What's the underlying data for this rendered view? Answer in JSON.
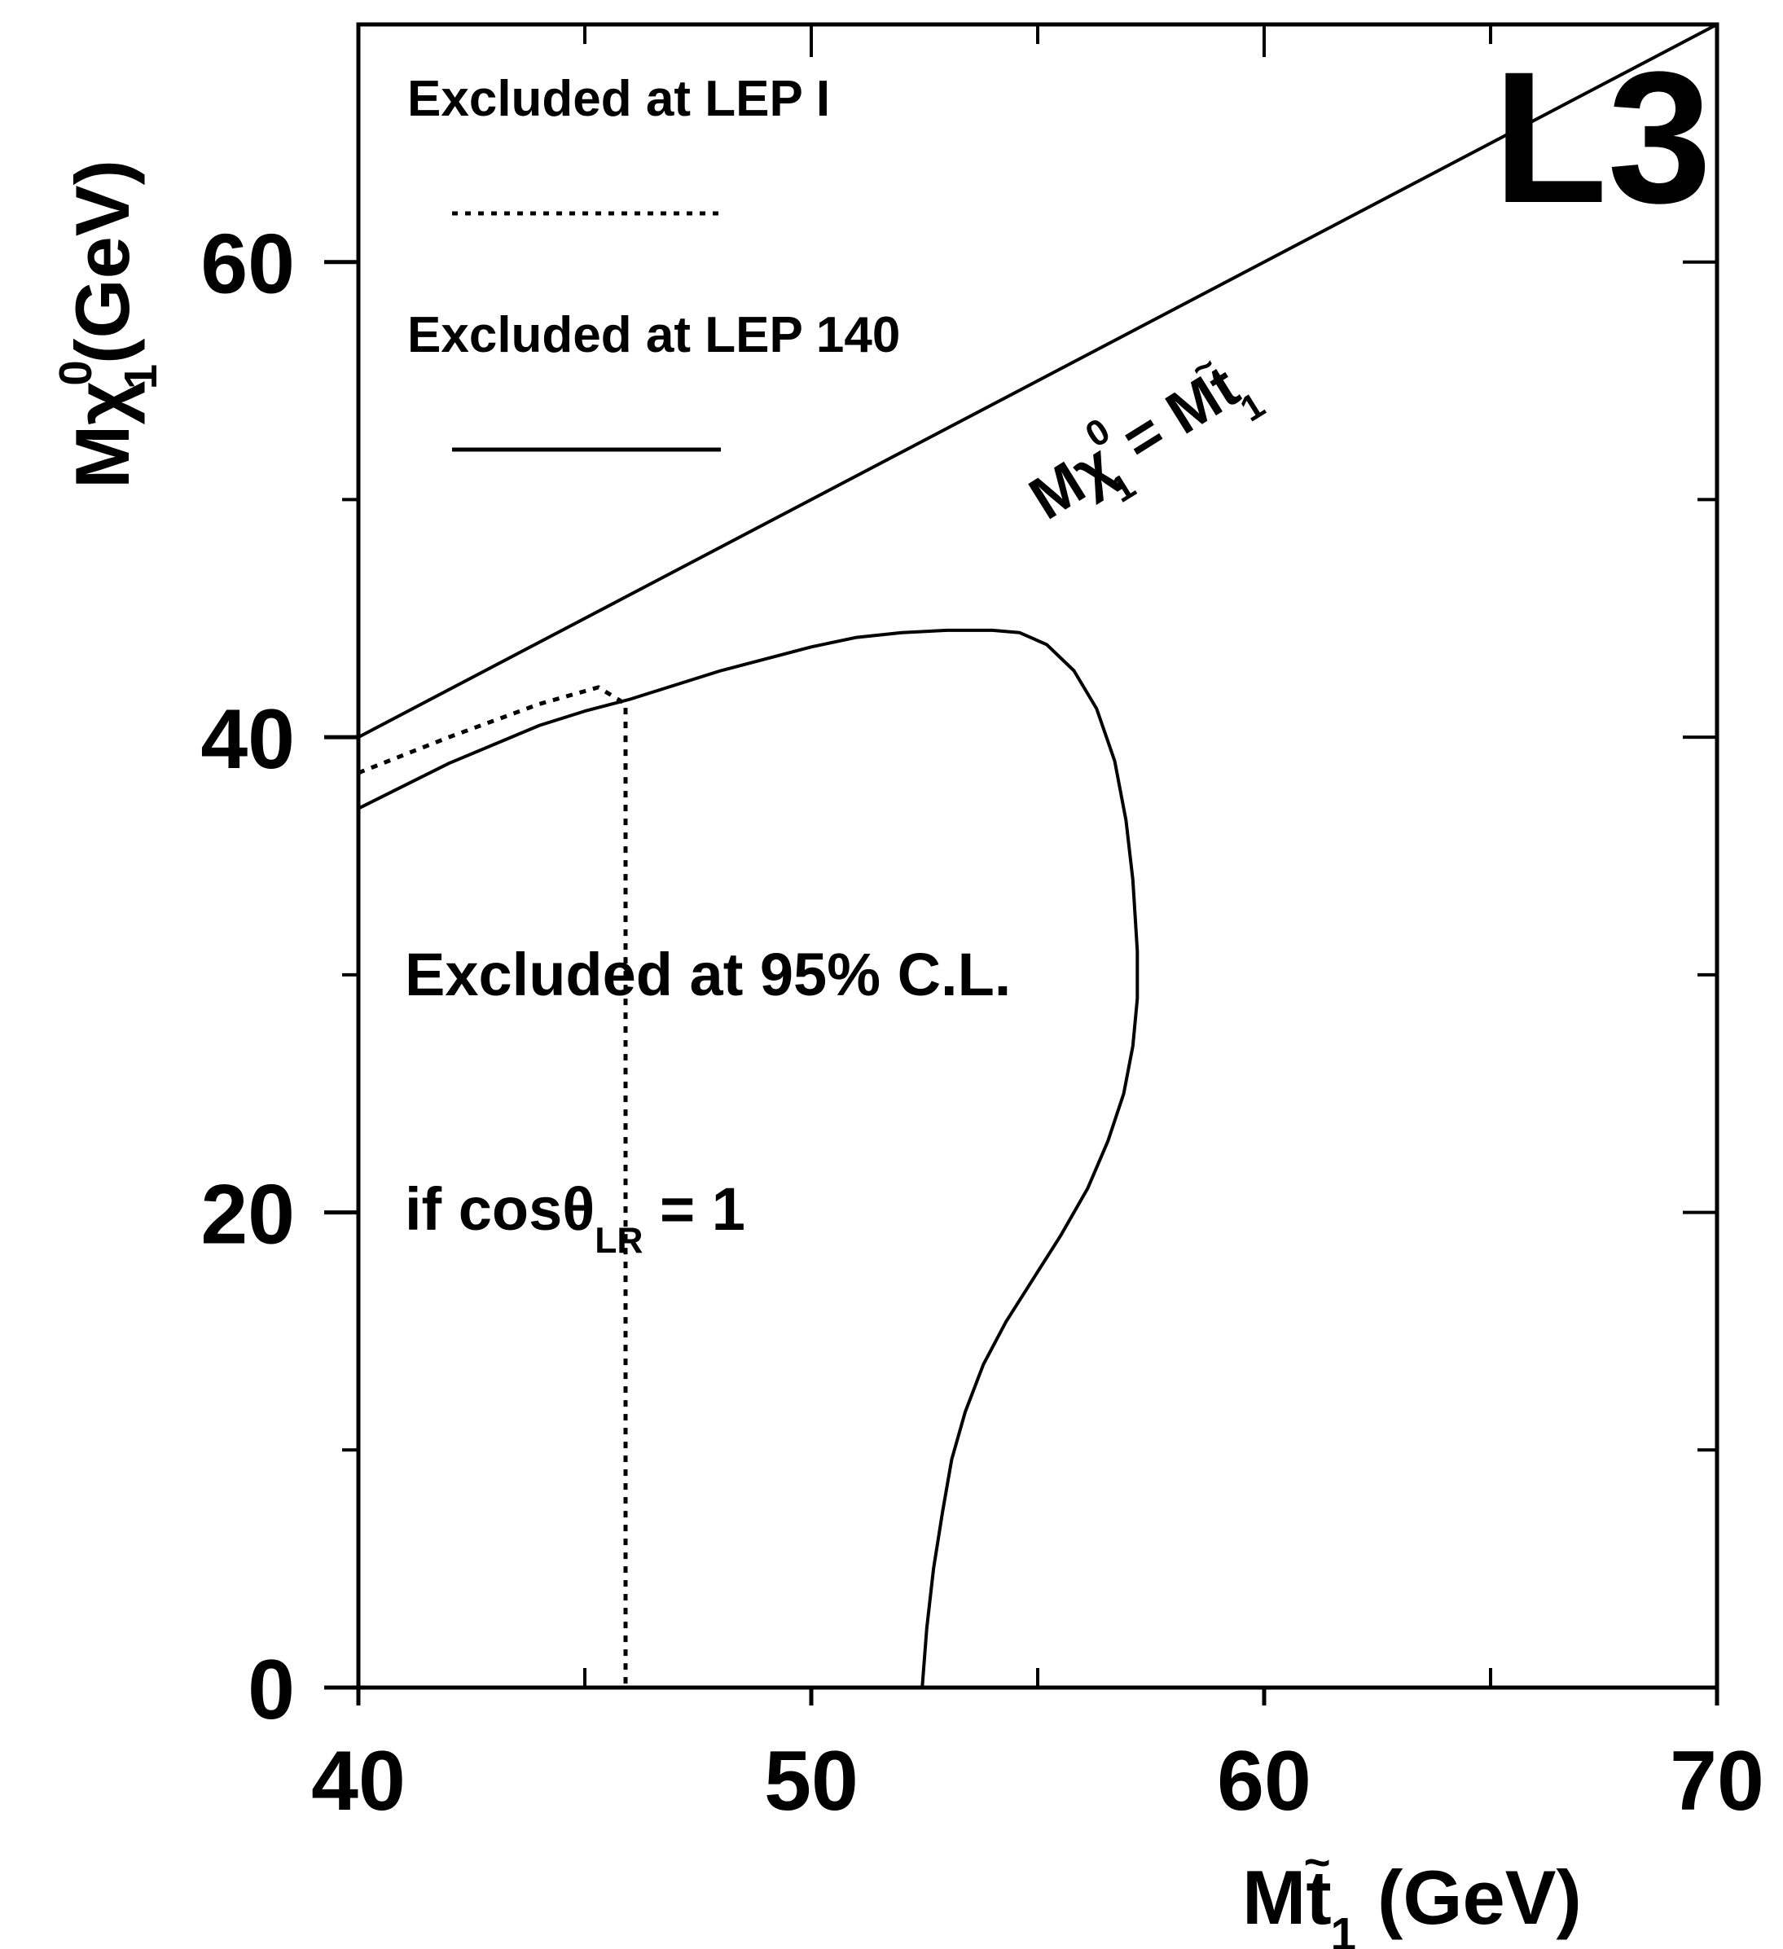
{
  "chart_data": {
    "type": "line",
    "xlabel": {
      "main": "M",
      "tilde": "~",
      "letter": "t",
      "sub": "1",
      "unit": " (GeV)"
    },
    "ylabel": {
      "main": "Mχ",
      "sup": "0",
      "sub": "1",
      "unit": "(GeV)"
    },
    "xlim": [
      40,
      70
    ],
    "ylim": [
      0,
      70
    ],
    "x_ticks": [
      40,
      50,
      60,
      70
    ],
    "y_ticks": [
      0,
      20,
      40,
      60
    ],
    "x_minor_ticks": [
      45,
      55,
      65
    ],
    "y_minor_ticks": [
      10,
      30,
      50
    ],
    "grid": false,
    "logo": "L3",
    "legend": [
      {
        "label": "Excluded at LEP I",
        "style": "dotted"
      },
      {
        "label": "Excluded at LEP 140",
        "style": "solid"
      }
    ],
    "series": [
      {
        "role": "kinematic-limit",
        "style": "solid",
        "x": [
          40,
          70
        ],
        "y": [
          40,
          70
        ]
      },
      {
        "role": "lep140-boundary",
        "style": "solid",
        "x": [
          40,
          42,
          44,
          45,
          46,
          47,
          48,
          49,
          50,
          51,
          52,
          53,
          54,
          54.6,
          55.2,
          55.8,
          56.3,
          56.7,
          56.95,
          57.1,
          57.2,
          57.2,
          57.1,
          56.9,
          56.55,
          56.1,
          55.5,
          54.9,
          54.3,
          53.8,
          53.4,
          53.1,
          52.9,
          52.7,
          52.55,
          52.45
        ],
        "y": [
          37,
          38.9,
          40.5,
          41.1,
          41.6,
          42.2,
          42.8,
          43.3,
          43.8,
          44.2,
          44.4,
          44.5,
          44.5,
          44.4,
          43.9,
          42.8,
          41.2,
          39.0,
          36.5,
          34.0,
          31.0,
          29.0,
          27.0,
          25.0,
          23.0,
          21.0,
          19.0,
          17.2,
          15.4,
          13.6,
          11.6,
          9.6,
          7.4,
          5.0,
          2.5,
          0
        ]
      },
      {
        "role": "lep1-boundary",
        "style": "dotted",
        "x": [
          40,
          42,
          44,
          45.3,
          45.9,
          45.9
        ],
        "y": [
          38.5,
          40.0,
          41.4,
          42.1,
          41.4,
          0
        ]
      }
    ],
    "annotations": [
      {
        "kind": "diagonal-label",
        "main": "Mχ",
        "sup": "0",
        "sub": "1",
        "rest": " = M",
        "tilde": "~",
        "letter": "t",
        "sub2": "1"
      },
      {
        "kind": "region-label",
        "text": "Excluded at 95% C.L."
      },
      {
        "kind": "condition",
        "text": "if  cosθ",
        "sub": "LR",
        "rest": " = 1"
      }
    ]
  }
}
